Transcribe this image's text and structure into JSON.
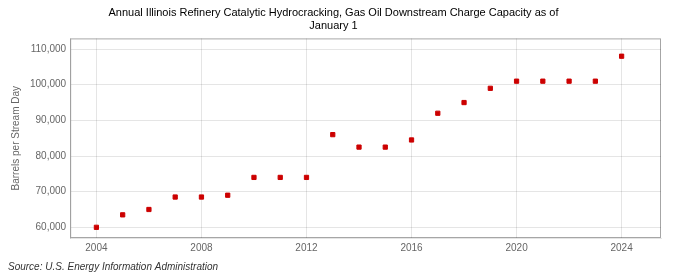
{
  "chart_data": {
    "type": "scatter",
    "title": "Annual Illinois Refinery Catalytic Hydrocracking, Gas Oil Downstream Charge Capacity as of\nJanuary 1",
    "ylabel": "Barrels per Stream Day",
    "annotations": [
      "Source: U.S. Energy Information Administration"
    ],
    "x": [
      2004,
      2005,
      2006,
      2007,
      2008,
      2009,
      2010,
      2011,
      2012,
      2013,
      2014,
      2015,
      2016,
      2017,
      2018,
      2019,
      2020,
      2021,
      2022,
      2023,
      2024
    ],
    "values": [
      60000,
      63500,
      65000,
      68500,
      68500,
      69000,
      74000,
      74000,
      74000,
      86000,
      82500,
      82500,
      84500,
      92000,
      95000,
      99000,
      101000,
      101000,
      101000,
      101000,
      108000
    ],
    "color": "#cc0000",
    "marker": "square",
    "xlim": [
      2003.0,
      2025.5
    ],
    "xticks": [
      2004,
      2008,
      2012,
      2016,
      2020,
      2024
    ],
    "ylim": [
      57000,
      113000
    ],
    "yticks": [
      {
        "value": 60000,
        "label": "60,000"
      },
      {
        "value": 70000,
        "label": "70,000"
      },
      {
        "value": 80000,
        "label": "80,000"
      },
      {
        "value": 90000,
        "label": "90,000"
      },
      {
        "value": 100000,
        "label": "100,000"
      },
      {
        "value": 110000,
        "label": "110,000"
      }
    ],
    "grid": true
  }
}
